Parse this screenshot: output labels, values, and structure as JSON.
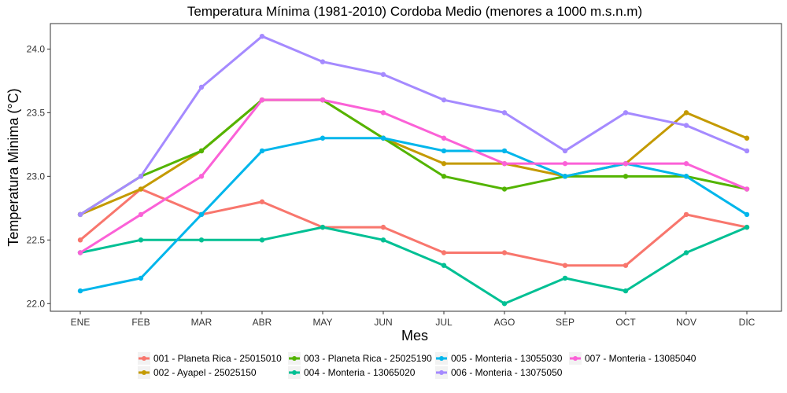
{
  "chart_data": {
    "type": "line",
    "title": "Temperatura Mínima (1981-2010) Cordoba Medio (menores a 1000 m.s.n.m)",
    "xlabel": "Mes",
    "ylabel": "Temperatura Minima (°C)",
    "categories": [
      "ENE",
      "FEB",
      "MAR",
      "ABR",
      "MAY",
      "JUN",
      "JUL",
      "AGO",
      "SEP",
      "OCT",
      "NOV",
      "DIC"
    ],
    "ylim": [
      21.94,
      24.2
    ],
    "yticks": [
      22.0,
      22.5,
      23.0,
      23.5,
      24.0
    ],
    "ytick_labels": [
      "22.0",
      "22.5",
      "23.0",
      "23.5",
      "24.0"
    ],
    "grid": false,
    "legend_position": "bottom",
    "series": [
      {
        "name": "001 - Planeta Rica - 25015010",
        "color": "#F8766D",
        "values": [
          22.5,
          22.9,
          22.7,
          22.8,
          22.6,
          22.6,
          22.4,
          22.4,
          22.3,
          22.3,
          22.7,
          22.6
        ]
      },
      {
        "name": "002 - Ayapel - 25025150",
        "color": "#C49A00",
        "values": [
          22.7,
          22.9,
          23.2,
          23.6,
          23.6,
          23.3,
          23.1,
          23.1,
          23.0,
          23.1,
          23.5,
          23.3
        ]
      },
      {
        "name": "003 - Planeta Rica - 25025190",
        "color": "#53B400",
        "values": [
          22.7,
          23.0,
          23.2,
          23.6,
          23.6,
          23.3,
          23.0,
          22.9,
          23.0,
          23.0,
          23.0,
          22.9
        ]
      },
      {
        "name": "004 - Monteria - 13065020",
        "color": "#00C094",
        "values": [
          22.4,
          22.5,
          22.5,
          22.5,
          22.6,
          22.5,
          22.3,
          22.0,
          22.2,
          22.1,
          22.4,
          22.6
        ]
      },
      {
        "name": "005 - Monteria - 13055030",
        "color": "#00B6EB",
        "values": [
          22.1,
          22.2,
          22.7,
          23.2,
          23.3,
          23.3,
          23.2,
          23.2,
          23.0,
          23.1,
          23.0,
          22.7
        ]
      },
      {
        "name": "006 - Monteria - 13075050",
        "color": "#A58AFF",
        "values": [
          22.7,
          23.0,
          23.7,
          24.1,
          23.9,
          23.8,
          23.6,
          23.5,
          23.2,
          23.5,
          23.4,
          23.2
        ]
      },
      {
        "name": "007 - Monteria - 13085040",
        "color": "#FB61D7",
        "values": [
          22.4,
          22.7,
          23.0,
          23.6,
          23.6,
          23.5,
          23.3,
          23.1,
          23.1,
          23.1,
          23.1,
          22.9
        ]
      }
    ]
  }
}
